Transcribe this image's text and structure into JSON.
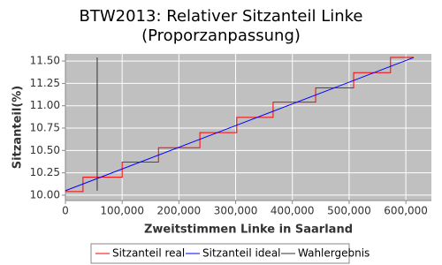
{
  "chart_data": {
    "type": "line",
    "title": "BTW2013: Relativer Sitzanteil Linke",
    "subtitle": "(Proporzanpassung)",
    "x_label": "Zweitstimmen Linke in Saarland",
    "y_label": "Sitzanteil(%)",
    "xlim": [
      0,
      645000
    ],
    "ylim": [
      9.94,
      11.58
    ],
    "xticks": [
      0,
      {
        "value": 100000,
        "label": "100,000"
      },
      {
        "value": 200000,
        "label": "200,000"
      },
      {
        "value": 300000,
        "label": "300,000"
      },
      {
        "value": 400000,
        "label": "400,000"
      },
      {
        "value": 500000,
        "label": "500,000"
      },
      {
        "value": 600000,
        "label": "600,000"
      }
    ],
    "yticks": [
      {
        "value": 10,
        "label": "10.00"
      },
      {
        "value": 10.25,
        "label": "10.25"
      },
      {
        "value": 10.5,
        "label": "10.50"
      },
      {
        "value": 10.75,
        "label": "10.75"
      },
      {
        "value": 11,
        "label": "11.00"
      },
      {
        "value": 11.25,
        "label": "11.25"
      },
      {
        "value": 11.5,
        "label": "11.50"
      }
    ],
    "grid": true,
    "series": [
      {
        "name": "Sitzanteil real",
        "color": "#ff0000",
        "x": [
          0,
          31000,
          31000,
          100000,
          100000,
          164000,
          164000,
          237000,
          237000,
          302000,
          302000,
          366000,
          366000,
          441000,
          441000,
          508000,
          508000,
          573000,
          573000,
          614000
        ],
        "values": [
          10.04,
          10.04,
          10.2,
          10.2,
          10.37,
          10.37,
          10.53,
          10.53,
          10.7,
          10.7,
          10.87,
          10.87,
          11.04,
          11.04,
          11.2,
          11.2,
          11.37,
          11.37,
          11.54,
          11.54
        ]
      },
      {
        "name": "Sitzanteil ideal",
        "color": "#0000ff",
        "x": [
          0,
          614000
        ],
        "values": [
          10.05,
          11.54
        ]
      },
      {
        "name": "Wahlergebnis",
        "color": "#333333",
        "x": [
          56000,
          56000
        ],
        "values": [
          10.05,
          11.54
        ]
      }
    ]
  }
}
